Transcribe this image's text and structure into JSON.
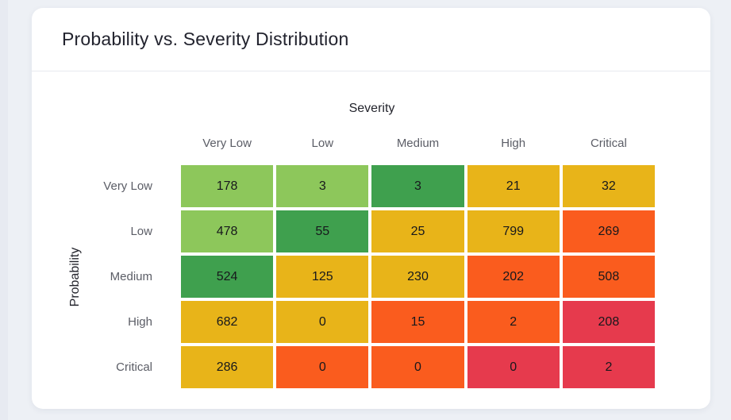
{
  "card": {
    "title": "Probability vs. Severity Distribution"
  },
  "chart_data": {
    "type": "heatmap",
    "title": "Probability vs. Severity Distribution",
    "xlabel": "Severity",
    "ylabel": "Probability",
    "x_categories": [
      "Very Low",
      "Low",
      "Medium",
      "High",
      "Critical"
    ],
    "y_categories": [
      "Very Low",
      "Low",
      "Medium",
      "High",
      "Critical"
    ],
    "legend": "none",
    "grid": "off",
    "palette": {
      "light_green": "#8dc75b",
      "green": "#3fa04e",
      "amber": "#e8b419",
      "orange": "#fa5c1e",
      "red": "#e63a4d"
    },
    "rows": [
      {
        "label": "Very Low",
        "values": [
          178,
          3,
          3,
          21,
          32
        ],
        "colors": [
          "#8dc75b",
          "#8dc75b",
          "#3fa04e",
          "#e8b419",
          "#e8b419"
        ]
      },
      {
        "label": "Low",
        "values": [
          478,
          55,
          25,
          799,
          269
        ],
        "colors": [
          "#8dc75b",
          "#3fa04e",
          "#e8b419",
          "#e8b419",
          "#fa5c1e"
        ]
      },
      {
        "label": "Medium",
        "values": [
          524,
          125,
          230,
          202,
          508
        ],
        "colors": [
          "#3fa04e",
          "#e8b419",
          "#e8b419",
          "#fa5c1e",
          "#fa5c1e"
        ]
      },
      {
        "label": "High",
        "values": [
          682,
          0,
          15,
          2,
          208
        ],
        "colors": [
          "#e8b419",
          "#e8b419",
          "#fa5c1e",
          "#fa5c1e",
          "#e63a4d"
        ]
      },
      {
        "label": "Critical",
        "values": [
          286,
          0,
          0,
          0,
          2
        ],
        "colors": [
          "#e8b419",
          "#fa5c1e",
          "#fa5c1e",
          "#e63a4d",
          "#e63a4d"
        ]
      }
    ]
  }
}
